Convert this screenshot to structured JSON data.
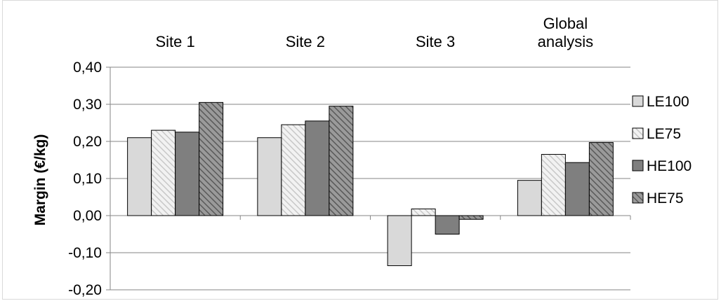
{
  "chart_data": {
    "type": "bar",
    "categories": [
      "Site 1",
      "Site 2",
      "Site 3",
      "Global analysis"
    ],
    "category_lines": [
      [
        "Site 1"
      ],
      [
        "Site 2"
      ],
      [
        "Site 3"
      ],
      [
        "Global",
        "analysis"
      ]
    ],
    "series": [
      {
        "name": "LE100",
        "values": [
          0.21,
          0.21,
          -0.135,
          0.095
        ],
        "color": "#d9d9d9",
        "pattern": "solid"
      },
      {
        "name": "LE75",
        "values": [
          0.23,
          0.245,
          0.018,
          0.165
        ],
        "color": "#d9d9d9",
        "pattern": "light-hatch"
      },
      {
        "name": "HE100",
        "values": [
          0.225,
          0.255,
          -0.05,
          0.143
        ],
        "color": "#7f7f7f",
        "pattern": "solid"
      },
      {
        "name": "HE75",
        "values": [
          0.305,
          0.295,
          -0.01,
          0.197
        ],
        "color": "#7f7f7f",
        "pattern": "dark-hatch"
      }
    ],
    "ylabel": "Margin (€/kg)",
    "xlabel": "",
    "ylim": [
      -0.2,
      0.4
    ],
    "yticks": [
      0.4,
      0.3,
      0.2,
      0.1,
      0.0,
      -0.1,
      -0.2
    ],
    "ytick_labels": [
      "0,40",
      "0,30",
      "0,20",
      "0,10",
      "0,00",
      "-0,10",
      "-0,20"
    ],
    "category_labels_position": "top",
    "grid": true,
    "legend_position": "right"
  }
}
